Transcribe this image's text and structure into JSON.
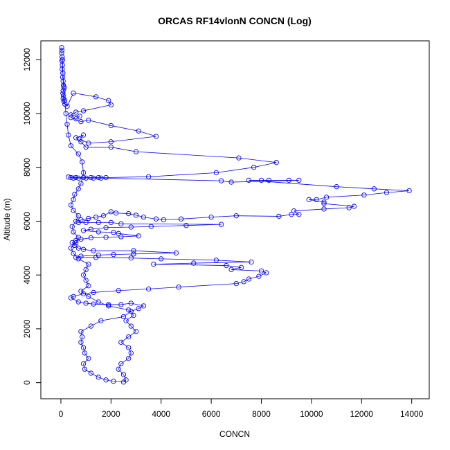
{
  "chart_data": {
    "type": "scatter",
    "title": "ORCAS RF14vlonN CONCN (Log)",
    "xlabel": "CONCN",
    "ylabel": "Altitude (m)",
    "xlim": [
      -800,
      14700
    ],
    "ylim": [
      -600,
      12700
    ],
    "xticks": [
      0,
      2000,
      4000,
      6000,
      8000,
      10000,
      12000,
      14000
    ],
    "yticks": [
      0,
      2000,
      4000,
      6000,
      8000,
      10000,
      12000
    ],
    "xtick_labels": [
      "0",
      "2000",
      "4000",
      "6000",
      "8000",
      "10000",
      "12000",
      "14000"
    ],
    "ytick_labels": [
      "0",
      "2000",
      "4000",
      "6000",
      "8000",
      "10000",
      "12000"
    ],
    "grid": false,
    "colors": {
      "series": "#0000ff",
      "axis": "#000000"
    },
    "series": [
      {
        "marker": "open-circle",
        "connected": true,
        "points": [
          [
            30,
            12450
          ],
          [
            40,
            12350
          ],
          [
            30,
            12250
          ],
          [
            50,
            12100
          ],
          [
            40,
            11950
          ],
          [
            60,
            11800
          ],
          [
            50,
            11650
          ],
          [
            80,
            11500
          ],
          [
            70,
            11350
          ],
          [
            90,
            11200
          ],
          [
            100,
            11050
          ],
          [
            130,
            10950
          ],
          [
            90,
            10850
          ],
          [
            80,
            10750
          ],
          [
            100,
            10650
          ],
          [
            90,
            10550
          ],
          [
            120,
            10450
          ],
          [
            160,
            10350
          ],
          [
            250,
            10270
          ],
          [
            500,
            10760
          ],
          [
            1400,
            10620
          ],
          [
            1900,
            10480
          ],
          [
            2000,
            10320
          ],
          [
            900,
            10100
          ],
          [
            600,
            10050
          ],
          [
            400,
            9950
          ],
          [
            750,
            9900
          ],
          [
            600,
            9800
          ],
          [
            400,
            9850
          ],
          [
            800,
            9700
          ],
          [
            1100,
            9750
          ],
          [
            2000,
            9550
          ],
          [
            3100,
            9350
          ],
          [
            3800,
            9150
          ],
          [
            2000,
            8950
          ],
          [
            1100,
            8900
          ],
          [
            750,
            9050
          ],
          [
            900,
            9200
          ],
          [
            600,
            9100
          ],
          [
            800,
            8950
          ],
          [
            1000,
            8750
          ],
          [
            2000,
            8750
          ],
          [
            3000,
            8580
          ],
          [
            7100,
            8350
          ],
          [
            8600,
            8180
          ],
          [
            7700,
            8000
          ],
          [
            6200,
            7800
          ],
          [
            3500,
            7650
          ],
          [
            1800,
            7620
          ],
          [
            1500,
            7620
          ],
          [
            1200,
            7620
          ],
          [
            900,
            7620
          ],
          [
            600,
            7620
          ],
          [
            400,
            7620
          ],
          [
            300,
            7640
          ],
          [
            500,
            7600
          ],
          [
            700,
            7600
          ],
          [
            1000,
            7600
          ],
          [
            1300,
            7600
          ],
          [
            1600,
            7600
          ],
          [
            6400,
            7500
          ],
          [
            6800,
            7450
          ],
          [
            9500,
            7520
          ],
          [
            9100,
            7520
          ],
          [
            8000,
            7520
          ],
          [
            8300,
            7520
          ],
          [
            7500,
            7520
          ],
          [
            11000,
            7280
          ],
          [
            12500,
            7200
          ],
          [
            13900,
            7130
          ],
          [
            13000,
            7060
          ],
          [
            12100,
            6970
          ],
          [
            10600,
            6890
          ],
          [
            10200,
            6800
          ],
          [
            9900,
            6800
          ],
          [
            10500,
            6710
          ],
          [
            10500,
            6650
          ],
          [
            11700,
            6550
          ],
          [
            11500,
            6500
          ],
          [
            10500,
            6450
          ],
          [
            9300,
            6380
          ],
          [
            9500,
            6250
          ],
          [
            9200,
            6250
          ],
          [
            8700,
            6180
          ],
          [
            7000,
            6200
          ],
          [
            6000,
            6150
          ],
          [
            4800,
            6080
          ],
          [
            4100,
            6050
          ],
          [
            3800,
            6080
          ],
          [
            3300,
            6150
          ],
          [
            3000,
            6220
          ],
          [
            2700,
            6280
          ],
          [
            2200,
            6300
          ],
          [
            2000,
            6350
          ],
          [
            1700,
            6200
          ],
          [
            1400,
            6150
          ],
          [
            1100,
            6100
          ],
          [
            800,
            6050
          ],
          [
            700,
            5950
          ],
          [
            1000,
            5950
          ],
          [
            1500,
            5950
          ],
          [
            2000,
            5950
          ],
          [
            2400,
            5900
          ],
          [
            6400,
            5880
          ],
          [
            5000,
            5840
          ],
          [
            3600,
            5800
          ],
          [
            2800,
            5780
          ],
          [
            1800,
            5760
          ],
          [
            1200,
            5700
          ],
          [
            900,
            5650
          ],
          [
            1500,
            5600
          ],
          [
            2100,
            5580
          ],
          [
            2300,
            5540
          ],
          [
            3100,
            5450
          ],
          [
            2400,
            5420
          ],
          [
            1800,
            5400
          ],
          [
            1200,
            5380
          ],
          [
            800,
            5330
          ],
          [
            600,
            5280
          ],
          [
            450,
            5200
          ],
          [
            550,
            5100
          ],
          [
            700,
            5000
          ],
          [
            900,
            4950
          ],
          [
            1300,
            4900
          ],
          [
            2900,
            4900
          ],
          [
            4600,
            4820
          ],
          [
            2900,
            4780
          ],
          [
            2100,
            4760
          ],
          [
            1500,
            4740
          ],
          [
            800,
            4700
          ],
          [
            600,
            4650
          ],
          [
            1400,
            4650
          ],
          [
            2800,
            4630
          ],
          [
            4000,
            4600
          ],
          [
            6200,
            4550
          ],
          [
            7600,
            4480
          ],
          [
            5300,
            4440
          ],
          [
            3700,
            4400
          ],
          [
            6600,
            4350
          ],
          [
            7200,
            4280
          ],
          [
            6800,
            4200
          ],
          [
            8000,
            4150
          ],
          [
            8200,
            4080
          ],
          [
            7900,
            3950
          ],
          [
            7500,
            3850
          ],
          [
            7300,
            3750
          ],
          [
            7000,
            3680
          ],
          [
            4700,
            3550
          ],
          [
            3500,
            3480
          ],
          [
            2300,
            3420
          ],
          [
            1300,
            3350
          ],
          [
            900,
            3300
          ],
          [
            500,
            3200
          ],
          [
            400,
            3150
          ],
          [
            700,
            3000
          ],
          [
            1000,
            2950
          ],
          [
            1300,
            2920
          ],
          [
            1900,
            2900
          ],
          [
            2400,
            2900
          ],
          [
            2800,
            2950
          ],
          [
            3300,
            2850
          ],
          [
            3100,
            2750
          ],
          [
            2800,
            2650
          ],
          [
            2500,
            2450
          ],
          [
            1600,
            2300
          ],
          [
            1200,
            2100
          ],
          [
            800,
            1900
          ],
          [
            850,
            1700
          ],
          [
            800,
            1500
          ],
          [
            900,
            1300
          ],
          [
            950,
            1100
          ],
          [
            1100,
            900
          ],
          [
            900,
            700
          ],
          [
            950,
            500
          ],
          [
            1200,
            350
          ],
          [
            1500,
            200
          ],
          [
            1800,
            100
          ],
          [
            2100,
            50
          ],
          [
            2500,
            20
          ],
          [
            2600,
            100
          ],
          [
            2500,
            300
          ],
          [
            2300,
            500
          ],
          [
            2400,
            700
          ],
          [
            2700,
            900
          ],
          [
            2800,
            1100
          ],
          [
            2700,
            1300
          ],
          [
            2400,
            1500
          ],
          [
            2700,
            1700
          ],
          [
            3000,
            1900
          ],
          [
            2800,
            2100
          ],
          [
            2600,
            2300
          ],
          [
            2900,
            2500
          ],
          [
            2700,
            2700
          ],
          [
            1900,
            2850
          ],
          [
            1500,
            3000
          ],
          [
            1100,
            3200
          ],
          [
            800,
            3400
          ],
          [
            1100,
            3600
          ],
          [
            1000,
            3800
          ],
          [
            900,
            4000
          ],
          [
            1000,
            4200
          ],
          [
            1100,
            4400
          ],
          [
            700,
            4600
          ],
          [
            500,
            4800
          ],
          [
            400,
            5000
          ],
          [
            600,
            5200
          ],
          [
            700,
            5400
          ],
          [
            500,
            5600
          ],
          [
            450,
            5800
          ],
          [
            600,
            6000
          ],
          [
            700,
            6200
          ],
          [
            500,
            6400
          ],
          [
            400,
            6600
          ],
          [
            500,
            6800
          ],
          [
            550,
            7000
          ],
          [
            700,
            7200
          ],
          [
            800,
            7400
          ],
          [
            900,
            7800
          ],
          [
            850,
            8200
          ],
          [
            700,
            8500
          ],
          [
            400,
            8800
          ],
          [
            300,
            9200
          ],
          [
            250,
            9600
          ],
          [
            200,
            10000
          ],
          [
            150,
            10500
          ],
          [
            120,
            11000
          ],
          [
            80,
            11500
          ],
          [
            60,
            12000
          ]
        ]
      }
    ]
  }
}
